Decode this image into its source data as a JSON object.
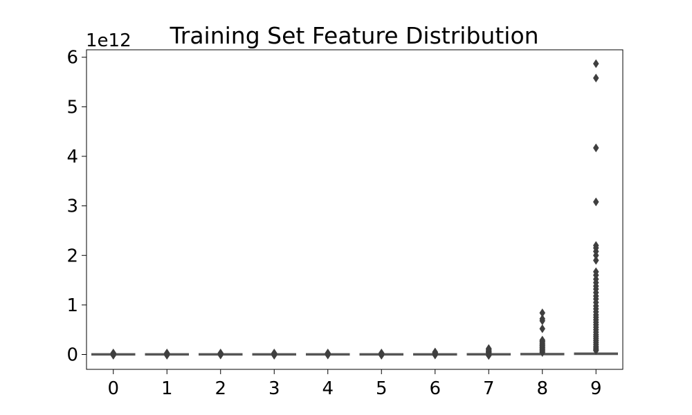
{
  "chart_data": {
    "type": "box",
    "title": "Training Set Feature Distribution",
    "xlabel": "",
    "ylabel": "",
    "y_scale_offset": "1e12",
    "categories": [
      "0",
      "1",
      "2",
      "3",
      "4",
      "5",
      "6",
      "7",
      "8",
      "9"
    ],
    "ylim": [
      -0.3,
      6.15
    ],
    "yticks": [
      0,
      1,
      2,
      3,
      4,
      5,
      6
    ],
    "grid": false,
    "colors": {
      "box": "#555555",
      "outlier": "#3f3f3f",
      "frame": "#000000"
    },
    "boxes": [
      {
        "category": "0",
        "q1": 0,
        "median": 0,
        "q3": 0.005,
        "whisker_low": 0,
        "whisker_high": 0.01,
        "outliers": [
          0.015,
          0.02,
          0.025,
          0.03,
          -0.01,
          -0.015
        ]
      },
      {
        "category": "1",
        "q1": 0,
        "median": 0,
        "q3": 0.005,
        "whisker_low": 0,
        "whisker_high": 0.01,
        "outliers": [
          0.015,
          0.02,
          0.03,
          -0.01,
          -0.015
        ]
      },
      {
        "category": "2",
        "q1": 0,
        "median": 0,
        "q3": 0.005,
        "whisker_low": 0,
        "whisker_high": 0.01,
        "outliers": [
          0.015,
          0.02,
          0.03,
          -0.01
        ]
      },
      {
        "category": "3",
        "q1": 0,
        "median": 0,
        "q3": 0.005,
        "whisker_low": 0,
        "whisker_high": 0.01,
        "outliers": [
          0.015,
          0.02,
          0.03,
          -0.01,
          -0.015
        ]
      },
      {
        "category": "4",
        "q1": 0,
        "median": 0,
        "q3": 0.005,
        "whisker_low": 0,
        "whisker_high": 0.01,
        "outliers": [
          0.015,
          0.02,
          0.03,
          -0.01
        ]
      },
      {
        "category": "5",
        "q1": 0,
        "median": 0,
        "q3": 0.005,
        "whisker_low": 0,
        "whisker_high": 0.01,
        "outliers": [
          0.015,
          0.02,
          0.03,
          -0.01,
          -0.015
        ]
      },
      {
        "category": "6",
        "q1": 0,
        "median": 0,
        "q3": 0.005,
        "whisker_low": 0,
        "whisker_high": 0.01,
        "outliers": [
          0.015,
          0.025,
          0.035,
          0.05,
          -0.01
        ]
      },
      {
        "category": "7",
        "q1": 0,
        "median": 0,
        "q3": 0.008,
        "whisker_low": 0,
        "whisker_high": 0.02,
        "outliers": [
          0.03,
          0.04,
          0.05,
          0.06,
          0.07,
          0.08,
          0.1,
          0.11,
          0.12,
          -0.01,
          -0.02
        ]
      },
      {
        "category": "8",
        "q1": 0,
        "median": 0.005,
        "q3": 0.015,
        "whisker_low": 0,
        "whisker_high": 0.03,
        "outliers": [
          0.04,
          0.06,
          0.08,
          0.1,
          0.12,
          0.14,
          0.16,
          0.18,
          0.2,
          0.22,
          0.25,
          0.27,
          0.29,
          0.52,
          0.68,
          0.72,
          0.84
        ]
      },
      {
        "category": "9",
        "q1": 0,
        "median": 0.01,
        "q3": 0.03,
        "whisker_low": 0,
        "whisker_high": 0.06,
        "outliers": [
          0.08,
          0.1,
          0.13,
          0.16,
          0.2,
          0.24,
          0.28,
          0.32,
          0.36,
          0.4,
          0.45,
          0.5,
          0.55,
          0.6,
          0.65,
          0.7,
          0.75,
          0.8,
          0.86,
          0.92,
          0.98,
          1.05,
          1.12,
          1.18,
          1.25,
          1.32,
          1.38,
          1.45,
          1.52,
          1.6,
          1.67,
          1.9,
          2.0,
          2.08,
          2.15,
          2.2,
          3.08,
          4.17,
          5.58,
          5.87
        ]
      }
    ]
  }
}
